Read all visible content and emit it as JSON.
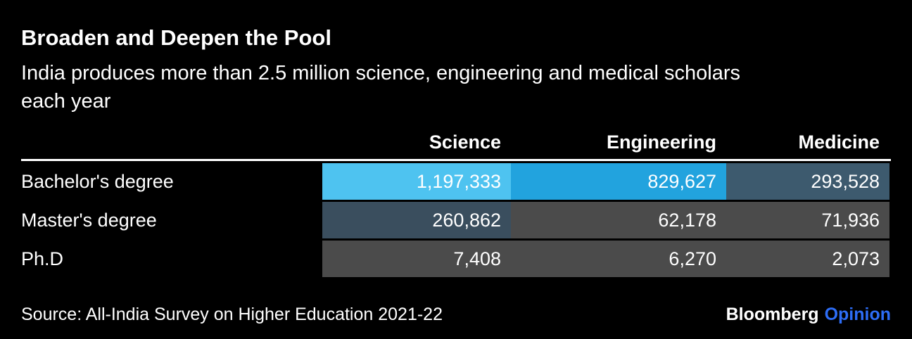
{
  "header": {
    "title": "Broaden and Deepen the Pool",
    "subtitle": "India produces more than 2.5 million science, engineering and medical scholars each year"
  },
  "chart_data": {
    "type": "table",
    "title": "Broaden and Deepen the Pool",
    "subtitle": "India produces more than 2.5 million science, engineering and medical scholars each year",
    "columns": [
      "Science",
      "Engineering",
      "Medicine"
    ],
    "rows": [
      {
        "label": "Bachelor's degree",
        "values": [
          "1,197,333",
          "829,627",
          "293,528"
        ],
        "numeric": [
          1197333,
          829627,
          293528
        ]
      },
      {
        "label": "Master's degree",
        "values": [
          "260,862",
          "62,178",
          "71,936"
        ],
        "numeric": [
          260862,
          62178,
          71936
        ]
      },
      {
        "label": "Ph.D",
        "values": [
          "7,408",
          "6,270",
          "2,073"
        ],
        "numeric": [
          7408,
          6270,
          2073
        ]
      }
    ],
    "cell_colors": [
      [
        "#4ec3f0",
        "#22a3de",
        "#3d5a6e"
      ],
      [
        "#3a4e5e",
        "#4b4b4b",
        "#4b4b4b"
      ],
      [
        "#4b4b4b",
        "#4b4b4b",
        "#4b4b4b"
      ]
    ]
  },
  "footer": {
    "source": "Source: All-India Survey on Higher Education 2021-22",
    "brand": "Bloomberg",
    "brand_suffix": "Opinion",
    "brand_suffix_color": "#2d6df6"
  }
}
